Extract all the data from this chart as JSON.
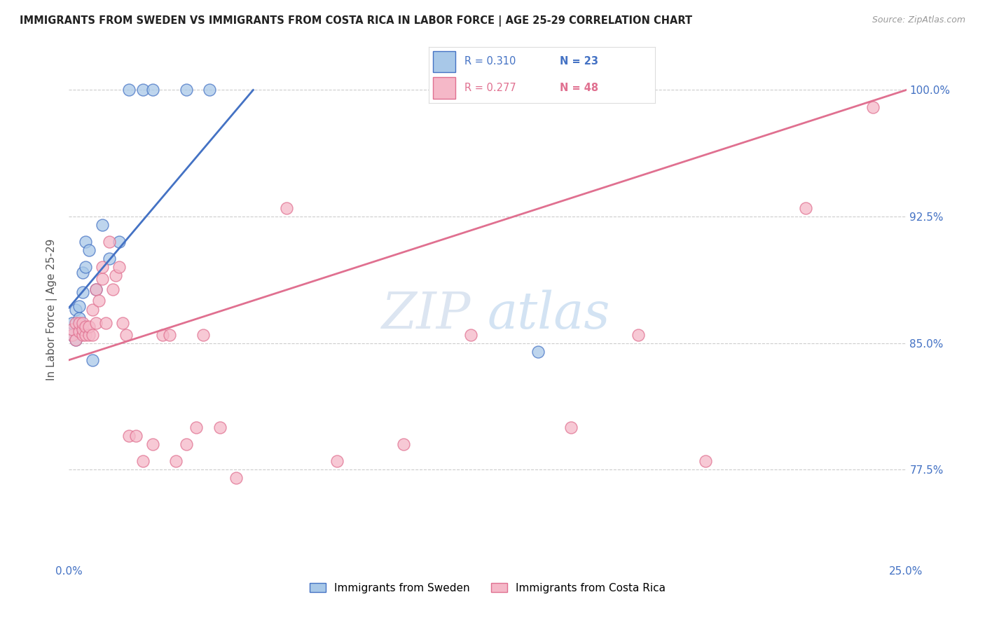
{
  "title": "IMMIGRANTS FROM SWEDEN VS IMMIGRANTS FROM COSTA RICA IN LABOR FORCE | AGE 25-29 CORRELATION CHART",
  "source": "Source: ZipAtlas.com",
  "ylabel": "In Labor Force | Age 25-29",
  "legend_sweden": "Immigrants from Sweden",
  "legend_costa_rica": "Immigrants from Costa Rica",
  "r_sweden": 0.31,
  "n_sweden": 23,
  "r_costa_rica": 0.277,
  "n_costa_rica": 48,
  "xlim": [
    0.0,
    0.25
  ],
  "ylim": [
    0.72,
    1.02
  ],
  "yticks": [
    0.775,
    0.85,
    0.925,
    1.0
  ],
  "ytick_labels": [
    "77.5%",
    "85.0%",
    "92.5%",
    "100.0%"
  ],
  "xticks": [
    0.0,
    0.05,
    0.1,
    0.15,
    0.2,
    0.25
  ],
  "xtick_labels": [
    "0.0%",
    "",
    "",
    "",
    "",
    "25.0%"
  ],
  "color_sweden": "#a8c8e8",
  "color_costa_rica": "#f5b8c8",
  "color_sweden_line": "#4472c4",
  "color_costa_rica_line": "#e07090",
  "watermark_zip": "ZIP",
  "watermark_atlas": "atlas",
  "background_color": "#ffffff",
  "grid_color": "#cccccc",
  "sweden_x": [
    0.001,
    0.001,
    0.002,
    0.002,
    0.003,
    0.003,
    0.003,
    0.004,
    0.004,
    0.005,
    0.005,
    0.006,
    0.007,
    0.008,
    0.01,
    0.012,
    0.015,
    0.018,
    0.022,
    0.025,
    0.035,
    0.042,
    0.14
  ],
  "sweden_y": [
    0.855,
    0.862,
    0.852,
    0.87,
    0.858,
    0.865,
    0.872,
    0.88,
    0.892,
    0.895,
    0.91,
    0.905,
    0.84,
    0.882,
    0.92,
    0.9,
    0.91,
    1.0,
    1.0,
    1.0,
    1.0,
    1.0,
    0.845
  ],
  "costa_rica_x": [
    0.001,
    0.001,
    0.002,
    0.002,
    0.003,
    0.003,
    0.004,
    0.004,
    0.004,
    0.005,
    0.005,
    0.006,
    0.006,
    0.007,
    0.007,
    0.008,
    0.008,
    0.009,
    0.01,
    0.01,
    0.011,
    0.012,
    0.013,
    0.014,
    0.015,
    0.016,
    0.017,
    0.018,
    0.02,
    0.022,
    0.025,
    0.028,
    0.03,
    0.032,
    0.035,
    0.038,
    0.04,
    0.045,
    0.05,
    0.065,
    0.08,
    0.1,
    0.12,
    0.15,
    0.17,
    0.19,
    0.22,
    0.24
  ],
  "costa_rica_y": [
    0.855,
    0.858,
    0.852,
    0.862,
    0.857,
    0.862,
    0.855,
    0.858,
    0.862,
    0.855,
    0.86,
    0.855,
    0.86,
    0.855,
    0.87,
    0.862,
    0.882,
    0.875,
    0.888,
    0.895,
    0.862,
    0.91,
    0.882,
    0.89,
    0.895,
    0.862,
    0.855,
    0.795,
    0.795,
    0.78,
    0.79,
    0.855,
    0.855,
    0.78,
    0.79,
    0.8,
    0.855,
    0.8,
    0.77,
    0.93,
    0.78,
    0.79,
    0.855,
    0.8,
    0.855,
    0.78,
    0.93,
    0.99
  ],
  "sweden_line_x0": 0.0,
  "sweden_line_y0": 0.871,
  "sweden_line_x1": 0.055,
  "sweden_line_y1": 1.0,
  "costa_rica_line_x0": 0.0,
  "costa_rica_line_y0": 0.84,
  "costa_rica_line_x1": 0.25,
  "costa_rica_line_y1": 1.0
}
